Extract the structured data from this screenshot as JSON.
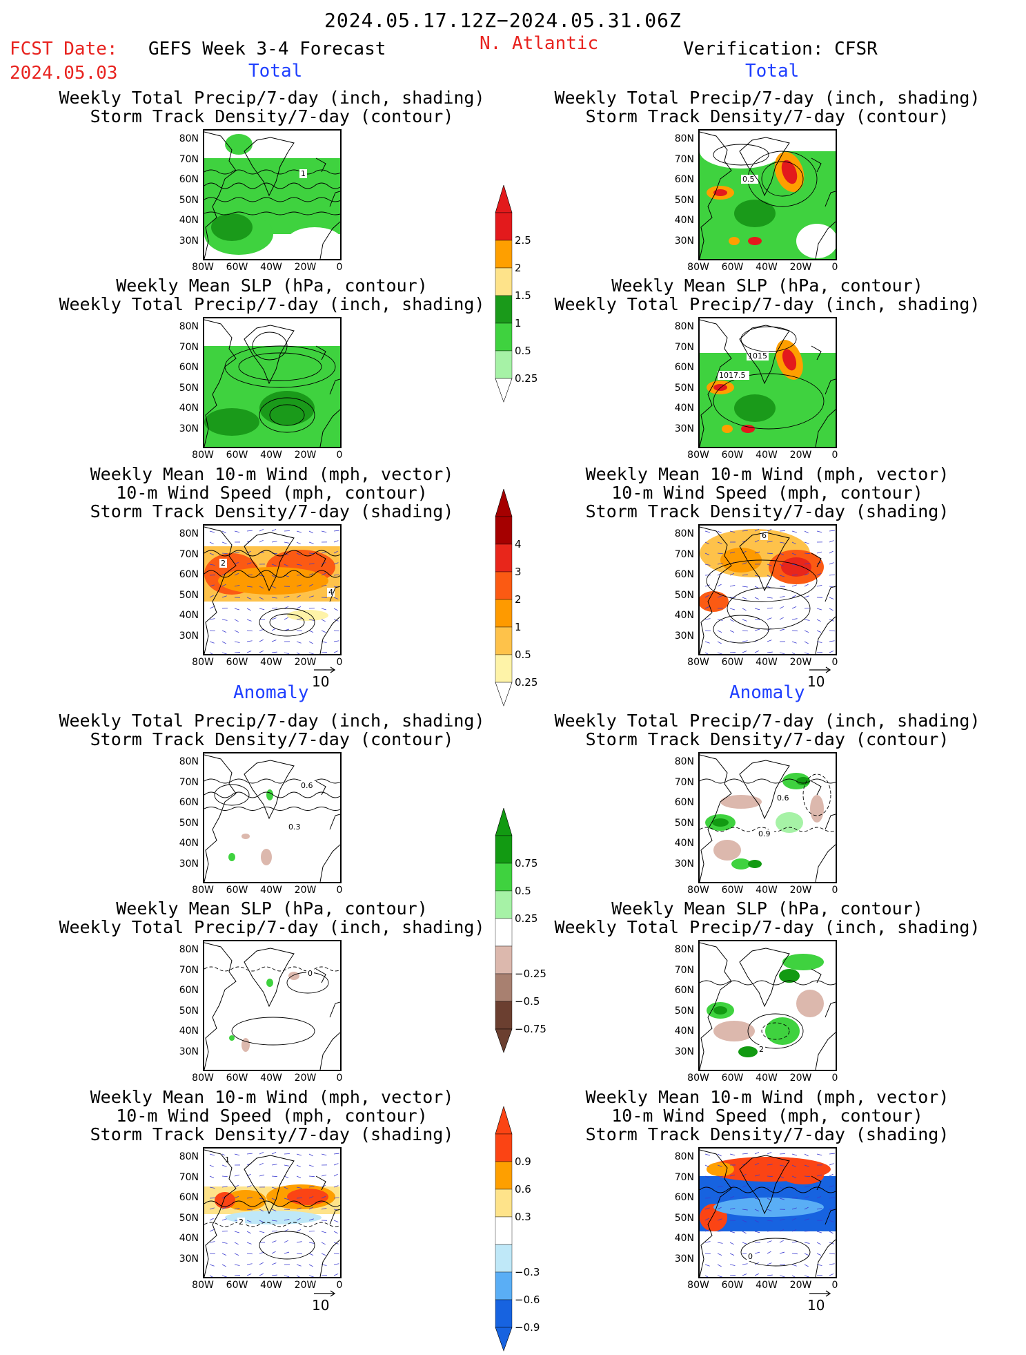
{
  "header": {
    "time_range": "2024.05.17.12Z−2024.05.31.06Z",
    "fcst_label": "FCST Date:",
    "fcst_date": "2024.05.03",
    "model": "GEFS Week 3-4 Forecast",
    "region": "N. Atlantic",
    "verification": "Verification: CFSR"
  },
  "sections": {
    "total": "Total",
    "anomaly": "Anomaly"
  },
  "panel_titles": {
    "precip_storm": [
      "Weekly Total Precip/7-day (inch, shading)",
      "Storm Track Density/7-day (contour)"
    ],
    "slp_precip": [
      "Weekly Mean SLP (hPa, contour)",
      "Weekly Total Precip/7-day (inch, shading)"
    ],
    "wind": [
      "Weekly Mean 10-m Wind (mph, vector)",
      "10-m Wind Speed (mph, contour)",
      "Storm Track Density/7-day (shading)"
    ]
  },
  "axes": {
    "lat": [
      "80N",
      "70N",
      "60N",
      "50N",
      "40N",
      "30N"
    ],
    "lon": [
      "80W",
      "60W",
      "40W",
      "20W",
      "0"
    ]
  },
  "contour_labels": {
    "left_precip_storm_total": "1",
    "right_precip_storm_total": "0.5",
    "right_slp_total_a": "1015",
    "right_slp_total_b": "1017.5",
    "left_wind_total_a": "2",
    "left_wind_total_b": "4",
    "right_wind_total": "6",
    "left_precip_storm_anom_a": "0.6",
    "left_precip_storm_anom_b": "0.3",
    "right_precip_storm_anom_a": "0.6",
    "right_precip_storm_anom_b": "0.9",
    "left_slp_anom": "0",
    "right_slp_anom": "2",
    "left_wind_anom": "2",
    "right_wind_anom": "0"
  },
  "vector_ref": "10",
  "colorbars": {
    "precip_total": {
      "labels": [
        "2.5",
        "2",
        "1.5",
        "1",
        "0.5",
        "0.25"
      ],
      "colors": [
        "#e31a1c",
        "#fe9f00",
        "#fee38a",
        "#1a9a1a",
        "#3fd23f",
        "#a6f2a6"
      ]
    },
    "storm_total": {
      "labels": [
        "4",
        "3",
        "2",
        "1",
        "0.5",
        "0.25"
      ],
      "colors": [
        "#a50000",
        "#e8261b",
        "#fb5a13",
        "#fe9a00",
        "#fec24a",
        "#fef3a8"
      ]
    },
    "precip_anom": {
      "labels": [
        "0.75",
        "0.5",
        "0.25",
        "−0.25",
        "−0.5",
        "−0.75"
      ],
      "colors": [
        "#129a12",
        "#3fd23f",
        "#a6f2a6",
        "#ffffff",
        "#dcb8ad",
        "#a88070",
        "#6b3f30"
      ]
    },
    "storm_anom": {
      "labels": [
        "0.9",
        "0.6",
        "0.3",
        "−0.3",
        "−0.6",
        "−0.9"
      ],
      "colors": [
        "#fb4414",
        "#fe9f00",
        "#fee38a",
        "#ffffff",
        "#bfe8f8",
        "#5aaef5",
        "#1763e0"
      ]
    }
  }
}
